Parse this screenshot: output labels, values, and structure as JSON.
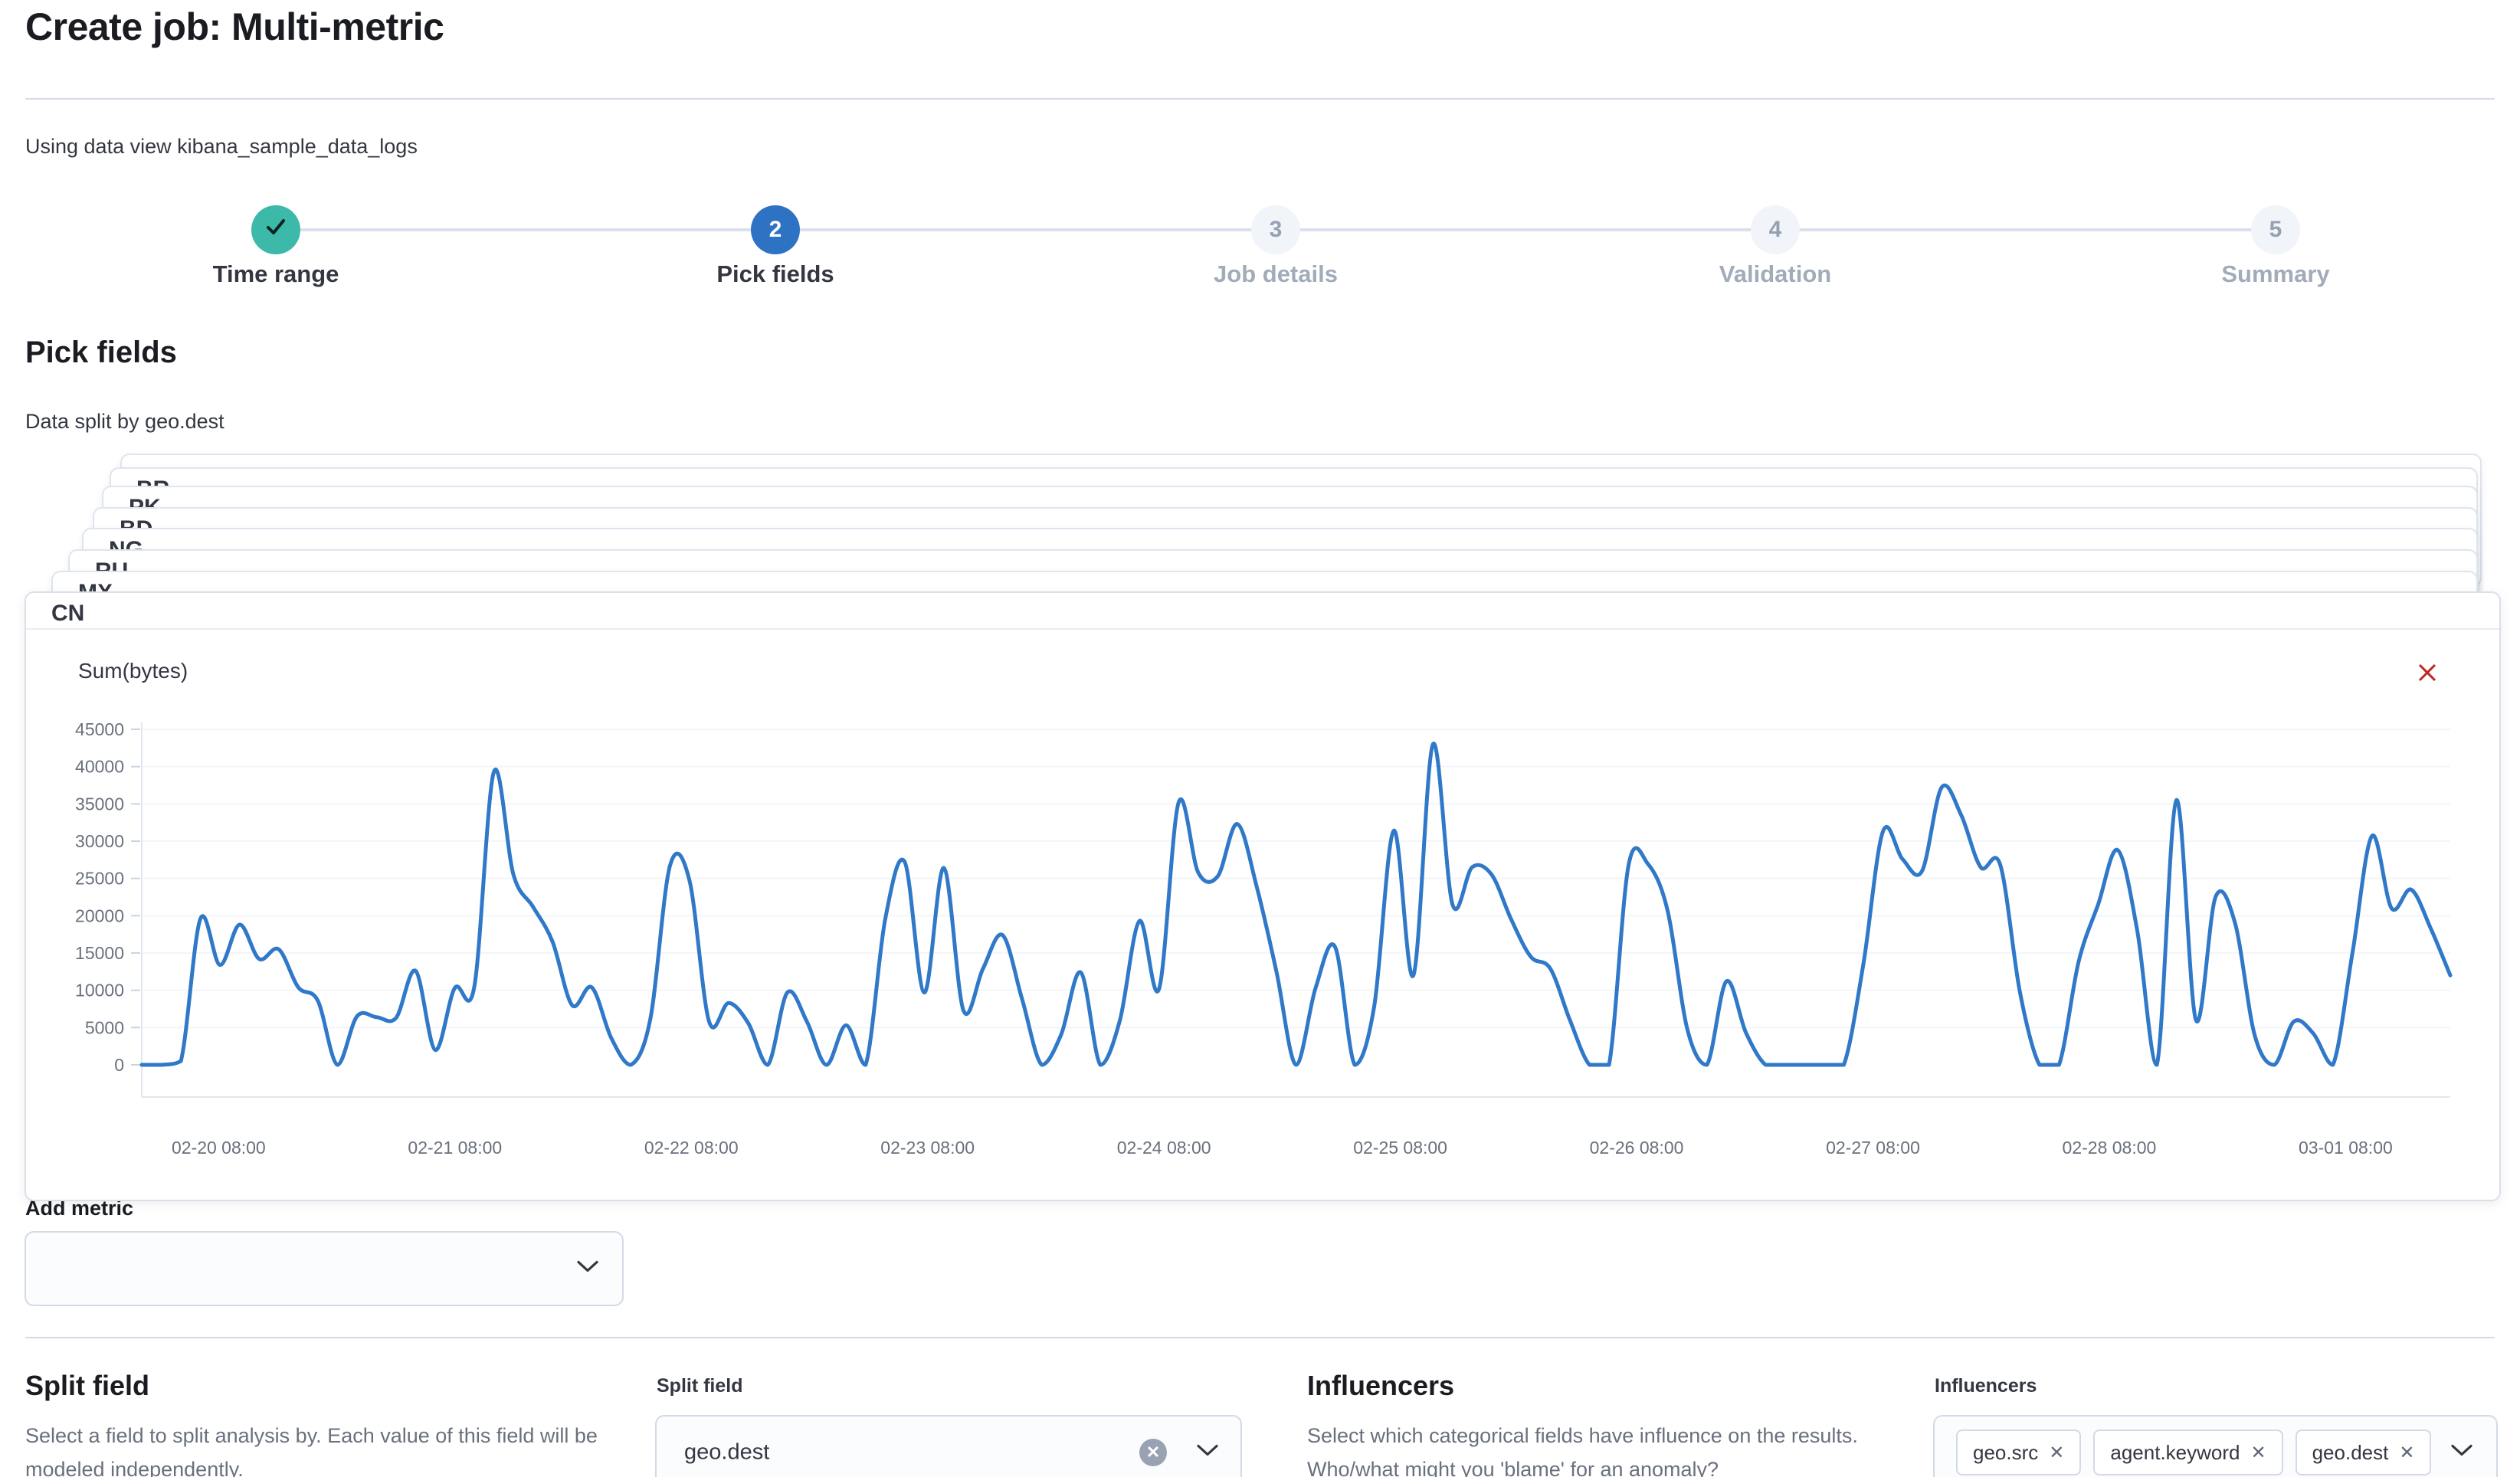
{
  "page": {
    "title": "Create job: Multi-metric",
    "data_view_note": "Using data view kibana_sample_data_logs"
  },
  "stepper": {
    "steps": [
      {
        "label": "Time range",
        "number": "",
        "status": "complete",
        "icon": "check-icon"
      },
      {
        "label": "Pick fields",
        "number": "2",
        "status": "active"
      },
      {
        "label": "Job details",
        "number": "3",
        "status": "incomplete"
      },
      {
        "label": "Validation",
        "number": "4",
        "status": "incomplete"
      },
      {
        "label": "Summary",
        "number": "5",
        "status": "incomplete"
      }
    ]
  },
  "pick_fields": {
    "heading": "Pick fields",
    "split_note": "Data split by geo.dest",
    "split_cards": [
      "CN",
      "MX",
      "RU",
      "NG",
      "BD",
      "PK",
      "BR"
    ]
  },
  "metric_card": {
    "title": "Sum(bytes)",
    "close_icon": "delete-metric-x",
    "close_color": "#bd271e"
  },
  "add_metric": {
    "label": "Add metric",
    "value": ""
  },
  "split_field_section": {
    "heading": "Split field",
    "description": "Select a field to split analysis by. Each value of this field will be modeled independently.",
    "input_label": "Split field",
    "value": "geo.dest"
  },
  "influencers_section": {
    "heading": "Influencers",
    "description": "Select which categorical fields have influence on the results. Who/what might you 'blame' for an anomaly?",
    "input_label": "Influencers",
    "selected": [
      "geo.src",
      "agent.keyword",
      "geo.dest"
    ]
  },
  "chart_data": {
    "type": "line",
    "title": "Sum(bytes)",
    "ylabel": "",
    "xlabel": "",
    "ylim": [
      0,
      45000
    ],
    "y_ticks": [
      0,
      5000,
      10000,
      15000,
      20000,
      25000,
      30000,
      35000,
      40000,
      45000
    ],
    "x_tick_labels": [
      "02-20 08:00",
      "02-21 08:00",
      "02-22 08:00",
      "02-23 08:00",
      "02-24 08:00",
      "02-25 08:00",
      "02-26 08:00",
      "02-27 08:00",
      "02-28 08:00",
      "03-01 08:00"
    ],
    "x_tick_positions": [
      3.93,
      16.01,
      28.09,
      40.17,
      52.25,
      64.33,
      76.41,
      88.49,
      100.57,
      112.65
    ],
    "line_color": "#3078c8",
    "grid": "faint-horizontal",
    "legend": "none",
    "series": [
      {
        "name": "CN",
        "values": [
          0,
          0,
          500,
          19600,
          13400,
          18800,
          14200,
          15500,
          10400,
          8600,
          0,
          6500,
          6400,
          6300,
          12600,
          2000,
          10300,
          10500,
          39300,
          25500,
          21200,
          16500,
          8000,
          10400,
          3600,
          0,
          6200,
          26700,
          24700,
          5800,
          8300,
          5600,
          0,
          9700,
          5800,
          0,
          5300,
          0,
          19500,
          27200,
          9700,
          26400,
          7300,
          12900,
          17400,
          8800,
          0,
          4100,
          12400,
          0,
          6000,
          19300,
          10200,
          35200,
          25800,
          25300,
          32300,
          23800,
          12500,
          0,
          10300,
          15800,
          0,
          7900,
          31400,
          12000,
          43000,
          21500,
          26500,
          25500,
          19500,
          14500,
          12900,
          6000,
          0,
          0,
          26800,
          26900,
          20600,
          4800,
          0,
          11200,
          4300,
          0,
          0,
          0,
          0,
          0,
          13500,
          31300,
          27600,
          26000,
          37200,
          33500,
          26500,
          26800,
          9800,
          0,
          0,
          13800,
          21500,
          28800,
          18000,
          0,
          35500,
          6000,
          22500,
          19000,
          4000,
          0,
          5800,
          4200,
          0,
          15000,
          30700,
          21000,
          23500,
          18300,
          12000
        ]
      }
    ]
  }
}
